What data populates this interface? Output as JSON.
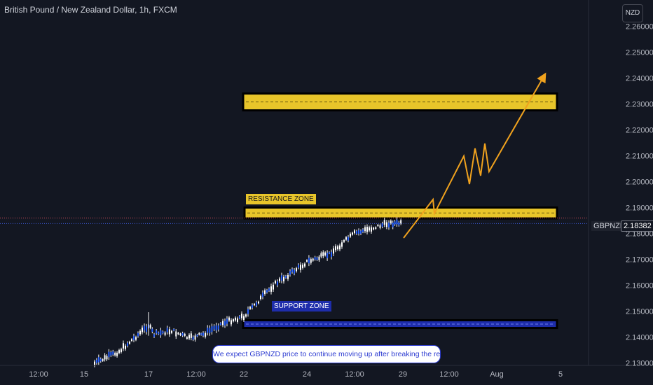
{
  "header": {
    "title": "British Pound / New Zealand Dollar, 1h, FXCM",
    "currency_button": "NZD"
  },
  "price_tag": {
    "symbol": "GBPNZD",
    "value": "2.18382"
  },
  "annotations": {
    "resistance_label": "RESISTANCE ZONE",
    "support_label": "SUPPORT ZONE",
    "note": "We expect GBPNZD price to continue moving up after breaking the resistance above"
  },
  "colors": {
    "background": "#131722",
    "resistance": "#e8c52a",
    "support": "#1e2dab",
    "price_line": "#3b5bdb",
    "forecast": "#f0a21e"
  },
  "chart_data": {
    "type": "line",
    "title": "British Pound / New Zealand Dollar, 1h, FXCM",
    "xlabel": "",
    "ylabel": "NZD",
    "x_ticks": [
      "12:00",
      "15",
      "17",
      "12:00",
      "22",
      "24",
      "12:00",
      "29",
      "12:00",
      "Aug",
      "5"
    ],
    "y_ticks": [
      "2.26000",
      "2.25000",
      "2.24000",
      "2.23000",
      "2.22000",
      "2.21000",
      "2.20000",
      "2.19000",
      "2.18000",
      "2.17000",
      "2.16000",
      "2.15000",
      "2.14000",
      "2.13000"
    ],
    "ylim": [
      2.1296,
      2.2647
    ],
    "grid": false,
    "series": [
      {
        "x": [
          "15",
          "16",
          "17",
          "17 12:00",
          "18",
          "19",
          "20",
          "21",
          "22",
          "23",
          "24",
          "25",
          "26",
          "27",
          "28",
          "29"
        ],
        "values": [
          2.1298,
          2.1345,
          2.1445,
          2.141,
          2.1425,
          2.1395,
          2.141,
          2.1455,
          2.148,
          2.16,
          2.169,
          2.172,
          2.18,
          2.182,
          2.184,
          2.1838
        ]
      }
    ],
    "zones": [
      {
        "label": "",
        "from": 2.2275,
        "to": 2.234
      },
      {
        "label": "RESISTANCE ZONE",
        "from": 2.1858,
        "to": 2.19
      },
      {
        "label": "SUPPORT ZONE",
        "from": 2.1435,
        "to": 2.1465
      }
    ],
    "forecast": {
      "x": [
        "29",
        "12:00",
        "Aug",
        "5"
      ],
      "values": [
        2.1805,
        2.212,
        2.205,
        2.245
      ]
    },
    "current_price": 2.18382
  }
}
